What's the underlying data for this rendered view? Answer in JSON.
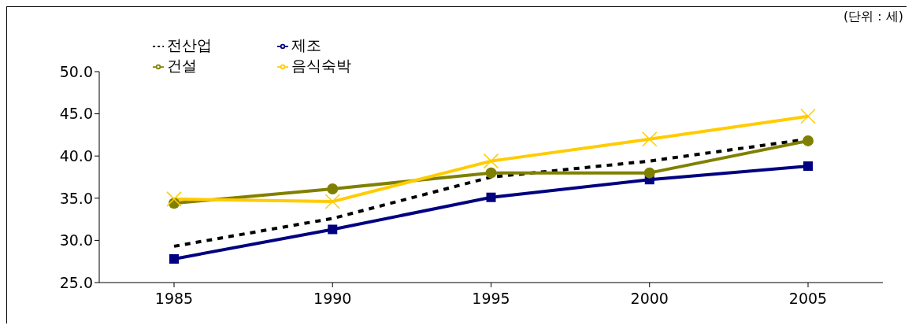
{
  "chart_data": {
    "type": "line",
    "annotations": [
      "(단위 : 세)"
    ],
    "categories": [
      "1985",
      "1990",
      "1995",
      "2000",
      "2005"
    ],
    "series": [
      {
        "name": "전산업",
        "color": "#000000",
        "line_style": "dashed",
        "marker": "none",
        "values": [
          29.3,
          32.6,
          37.5,
          39.4,
          42.0
        ]
      },
      {
        "name": "제조",
        "color": "#000080",
        "marker": "square",
        "values": [
          27.8,
          31.3,
          35.1,
          37.2,
          38.8
        ]
      },
      {
        "name": "건설",
        "color": "#808000",
        "marker": "circle",
        "values": [
          34.4,
          36.1,
          38.0,
          38.0,
          41.8
        ]
      },
      {
        "name": "음식숙박",
        "color": "#ffcc00",
        "marker": "cross",
        "values": [
          34.9,
          34.6,
          39.4,
          42.0,
          44.7
        ]
      }
    ],
    "ylim": [
      25,
      50
    ],
    "yticks": [
      {
        "value": 25,
        "label": "25.0"
      },
      {
        "value": 30,
        "label": "30.0"
      },
      {
        "value": 35,
        "label": "35.0"
      },
      {
        "value": 40,
        "label": "40.0"
      },
      {
        "value": 45,
        "label": "45.0"
      },
      {
        "value": 50,
        "label": "50.0"
      }
    ],
    "grid": false,
    "legend": "top left"
  }
}
